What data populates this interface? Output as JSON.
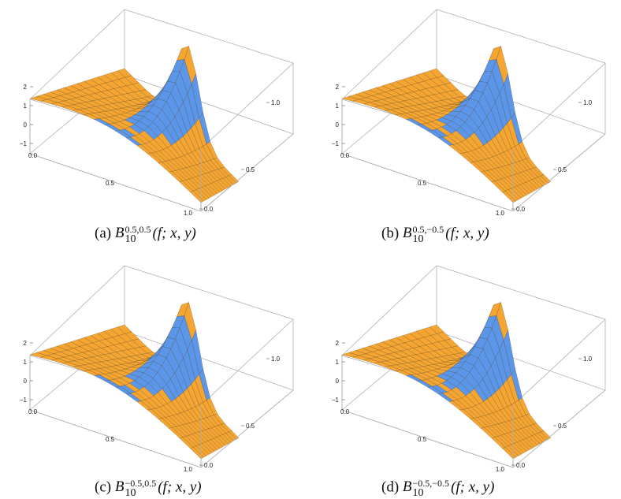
{
  "colors": {
    "orange": "#F5A531",
    "blue": "#5B96E8",
    "mesh": "#3a2a10",
    "box": "#b0b0b0"
  },
  "panels": [
    {
      "id": "a",
      "label": "(a)",
      "sup": "0.5,0.5",
      "sub": "10",
      "args": "(f; x, y)",
      "ticks": {
        "z": [
          "2",
          "1",
          "0",
          "−1"
        ],
        "x": [
          "0.0",
          "0.5",
          "1.0"
        ],
        "y": [
          "0.0",
          "0.5",
          "1.0"
        ]
      }
    },
    {
      "id": "b",
      "label": "(b)",
      "sup": "0.5,−0.5",
      "sub": "10",
      "args": "(f; x, y)",
      "ticks": {
        "z": [
          "2",
          "1",
          "0",
          "−1"
        ],
        "x": [
          "0.0",
          "0.5",
          "1.0"
        ],
        "y": [
          "0.0",
          "0.5",
          "1.0"
        ]
      }
    },
    {
      "id": "c",
      "label": "(c)",
      "sup": "−0.5,0.5",
      "sub": "10",
      "args": "(f; x, y)",
      "ticks": {
        "z": [
          "2",
          "1",
          "0",
          "−1"
        ],
        "x": [
          "0.0",
          "0.5",
          "1.0"
        ],
        "y": [
          "0.0",
          "0.5",
          "1.0"
        ]
      }
    },
    {
      "id": "d",
      "label": "(d)",
      "sup": "−0.5,−0.5",
      "sub": "10",
      "args": "(f; x, y)",
      "ticks": {
        "z": [
          "2",
          "1",
          "0",
          "−1"
        ],
        "x": [
          "0.0",
          "0.5",
          "1.0"
        ],
        "y": [
          "0.0",
          "0.5",
          "1.0"
        ]
      }
    }
  ]
}
